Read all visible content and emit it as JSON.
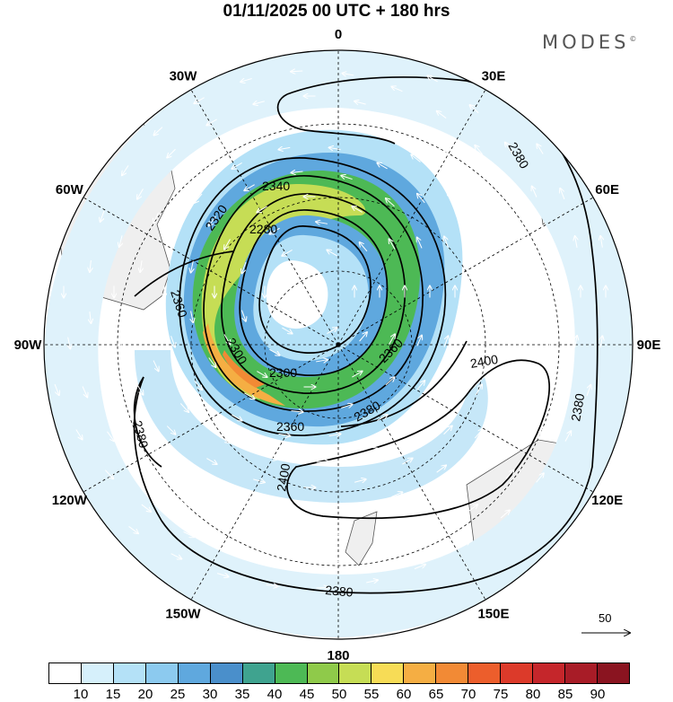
{
  "title": "01/11/2025  00 UTC  + 180 hrs",
  "brand": "MODES",
  "brand_mark": "©",
  "longitude_labels": [
    {
      "text": "0",
      "angle": 0
    },
    {
      "text": "30E",
      "angle": 30
    },
    {
      "text": "60E",
      "angle": 60
    },
    {
      "text": "90E",
      "angle": 90
    },
    {
      "text": "120E",
      "angle": 120
    },
    {
      "text": "150E",
      "angle": 150
    },
    {
      "text": "180",
      "angle": 180
    },
    {
      "text": "150W",
      "angle": 210
    },
    {
      "text": "120W",
      "angle": 240
    },
    {
      "text": "90W",
      "angle": 270
    },
    {
      "text": "60W",
      "angle": 300
    },
    {
      "text": "30W",
      "angle": 330
    }
  ],
  "contour_labels": [
    "2280",
    "2300",
    "2320",
    "2340",
    "2360",
    "2380",
    "2400"
  ],
  "colorbar": {
    "ticks": [
      "10",
      "15",
      "20",
      "25",
      "30",
      "35",
      "40",
      "45",
      "50",
      "55",
      "60",
      "65",
      "70",
      "75",
      "80",
      "85",
      "90"
    ],
    "colors": [
      "#ffffff",
      "#d6f0fb",
      "#b4e1f7",
      "#8ccaef",
      "#5fa8de",
      "#4a8fcb",
      "#3fa38f",
      "#4db955",
      "#8fca4a",
      "#c6dd55",
      "#f7dc56",
      "#f5ae43",
      "#f28a35",
      "#ec5e2c",
      "#dc3a2a",
      "#c5262b",
      "#a81c27",
      "#8a1420"
    ]
  },
  "reference_vector": {
    "label": "50"
  },
  "map_colors": {
    "land": "#efefef",
    "coast": "#555555"
  }
}
